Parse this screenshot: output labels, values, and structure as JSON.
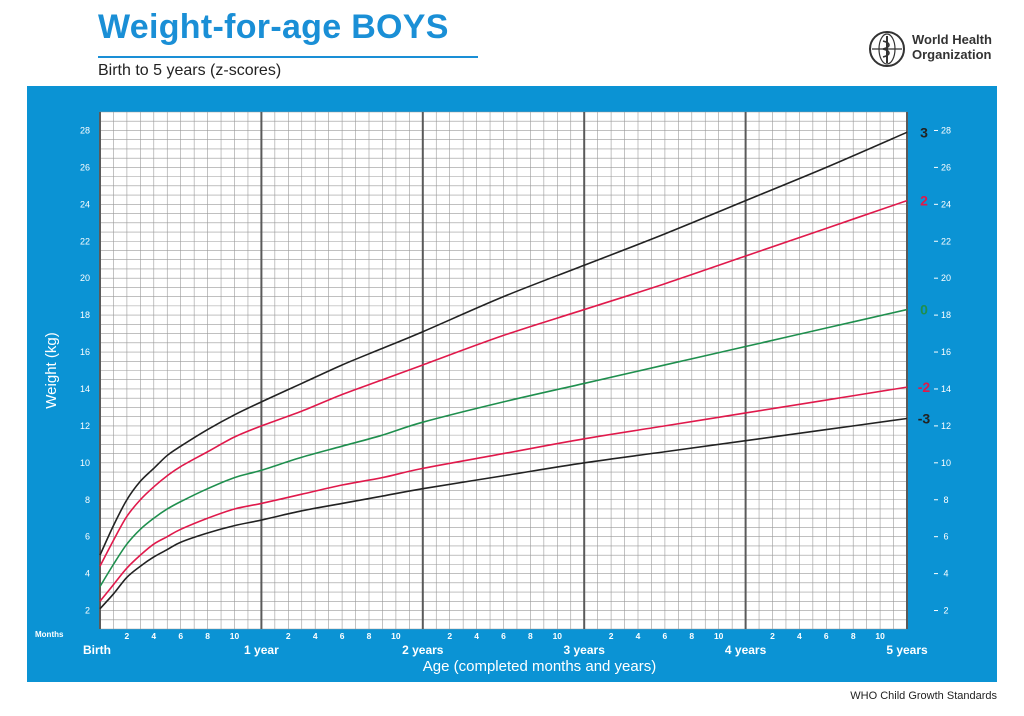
{
  "header": {
    "title": "Weight-for-age BOYS",
    "subtitle": "Birth to 5 years (z-scores)",
    "logo_text_line1": "World Health",
    "logo_text_line2": "Organization"
  },
  "footer": {
    "label": "WHO Child Growth Standards"
  },
  "colors": {
    "panel": "#0b93d4",
    "grid_background": "#ffffff",
    "grid_minor": "#9a9a9a",
    "grid_major": "#5a5a5a",
    "z3": "#222222",
    "z2": "#e0194b",
    "z0": "#1f8f4e"
  },
  "chart_data": {
    "type": "line",
    "xlabel": "Age (completed months and years)",
    "ylabel": "Weight (kg)",
    "x_unit": "months",
    "xlim": [
      0,
      60
    ],
    "ylim": [
      1,
      29
    ],
    "y_ticks": [
      2,
      4,
      6,
      8,
      10,
      12,
      14,
      16,
      18,
      20,
      22,
      24,
      26,
      28
    ],
    "months_label": "Months",
    "month_tick_labels": [
      "2",
      "4",
      "6",
      "8",
      "10"
    ],
    "year_labels": [
      {
        "month": 0,
        "label": "Birth"
      },
      {
        "month": 12,
        "label": "1 year"
      },
      {
        "month": 24,
        "label": "2 years"
      },
      {
        "month": 36,
        "label": "3 years"
      },
      {
        "month": 48,
        "label": "4 years"
      },
      {
        "month": 60,
        "label": "5 years"
      }
    ],
    "grid": true,
    "x": [
      0,
      1,
      2,
      3,
      4,
      5,
      6,
      8,
      10,
      12,
      15,
      18,
      21,
      24,
      30,
      36,
      42,
      48,
      54,
      60
    ],
    "series": [
      {
        "name": "3",
        "color": "#222222",
        "values": [
          5.0,
          6.6,
          8.0,
          9.0,
          9.7,
          10.4,
          10.9,
          11.8,
          12.6,
          13.3,
          14.3,
          15.3,
          16.2,
          17.1,
          19.0,
          20.7,
          22.4,
          24.2,
          26.0,
          27.9
        ]
      },
      {
        "name": "2",
        "color": "#e0194b",
        "values": [
          4.4,
          5.8,
          7.1,
          8.0,
          8.7,
          9.3,
          9.8,
          10.6,
          11.4,
          12.0,
          12.8,
          13.7,
          14.5,
          15.3,
          16.9,
          18.3,
          19.7,
          21.2,
          22.7,
          24.2
        ]
      },
      {
        "name": "0",
        "color": "#1f8f4e",
        "values": [
          3.3,
          4.5,
          5.6,
          6.4,
          7.0,
          7.5,
          7.9,
          8.6,
          9.2,
          9.6,
          10.3,
          10.9,
          11.5,
          12.2,
          13.3,
          14.3,
          15.3,
          16.3,
          17.3,
          18.3
        ]
      },
      {
        "name": "-2",
        "color": "#e0194b",
        "values": [
          2.5,
          3.4,
          4.3,
          5.0,
          5.6,
          6.0,
          6.4,
          7.0,
          7.5,
          7.8,
          8.3,
          8.8,
          9.2,
          9.7,
          10.5,
          11.3,
          12.0,
          12.7,
          13.4,
          14.1
        ]
      },
      {
        "name": "-3",
        "color": "#222222",
        "values": [
          2.1,
          2.9,
          3.8,
          4.4,
          4.9,
          5.3,
          5.7,
          6.2,
          6.6,
          6.9,
          7.4,
          7.8,
          8.2,
          8.6,
          9.3,
          10.0,
          10.6,
          11.2,
          11.8,
          12.4
        ]
      }
    ]
  }
}
